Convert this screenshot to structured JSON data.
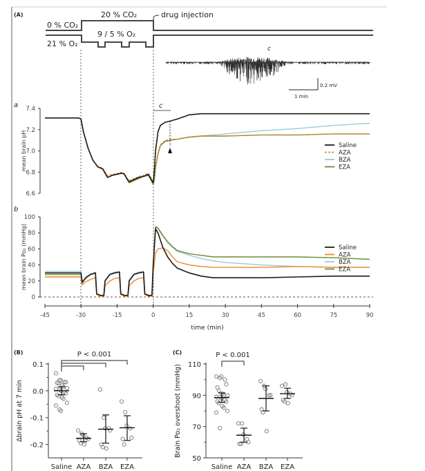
{
  "figure": {
    "panel_labels": [
      "(A)",
      "(B)",
      "(C)"
    ],
    "protocol": {
      "co2_baseline": "0 % CO₂",
      "co2_high": "20 % CO₂",
      "o2_baseline": "21 % O₂",
      "o2_low": "9 / 5 % O₂",
      "injection_label": "drug injection"
    },
    "trace_c": {
      "label": "c",
      "scale_voltage": "0.2 mV",
      "scale_time": "1 min"
    },
    "subpanel_a_label": "a",
    "subpanel_b_label": "b",
    "c_bar_label": "c"
  },
  "colors": {
    "Saline": "#1a1a1a",
    "AZA": "#e8892f",
    "BZA": "#9cc9d6",
    "EZA": "#6b8a34"
  },
  "chart_data": [
    {
      "id": "ph-time-course",
      "type": "line",
      "title": "",
      "xlabel": "time (min)",
      "ylabel": "mean brain pH",
      "xlim": [
        -45,
        90
      ],
      "ylim": [
        6.6,
        7.4
      ],
      "yticks": [
        "7.4",
        "7.2",
        "7.0",
        "6.8",
        "6.6"
      ],
      "legend": [
        "Saline",
        "AZA",
        "BZA",
        "EZA"
      ],
      "legend_position": "right",
      "annotations": [
        "arrowhead at 7 min"
      ],
      "series": [
        {
          "name": "Saline",
          "style": "solid",
          "x": [
            -45,
            -31,
            -30,
            -29,
            -27,
            -25,
            -23,
            -21,
            -19,
            -17,
            -15,
            -13,
            -12,
            -11,
            -10,
            -8,
            -6,
            -4,
            -2,
            -1,
            0,
            0.5,
            1,
            2,
            3,
            5,
            7,
            10,
            15,
            20,
            25,
            30,
            45,
            60,
            75,
            90
          ],
          "y": [
            7.31,
            7.31,
            7.3,
            7.18,
            7.02,
            6.91,
            6.85,
            6.83,
            6.75,
            6.77,
            6.78,
            6.79,
            6.78,
            6.74,
            6.71,
            6.73,
            6.75,
            6.76,
            6.78,
            6.74,
            6.7,
            6.82,
            7.0,
            7.18,
            7.24,
            7.27,
            7.28,
            7.3,
            7.34,
            7.35,
            7.35,
            7.35,
            7.35,
            7.35,
            7.35,
            7.35
          ]
        },
        {
          "name": "AZA",
          "style": "dashed",
          "x": [
            -45,
            -31,
            -30,
            -29,
            -27,
            -25,
            -23,
            -21,
            -19,
            -17,
            -15,
            -13,
            -12,
            -11,
            -10,
            -8,
            -6,
            -4,
            -2,
            -1,
            0,
            0.5,
            1,
            2,
            3,
            5,
            7,
            10,
            15,
            20,
            25,
            30,
            45,
            60,
            75,
            90
          ],
          "y": [
            7.31,
            7.31,
            7.3,
            7.18,
            7.02,
            6.91,
            6.85,
            6.84,
            6.77,
            6.78,
            6.79,
            6.8,
            6.79,
            6.75,
            6.72,
            6.74,
            6.76,
            6.77,
            6.79,
            6.75,
            6.69,
            6.74,
            6.85,
            6.98,
            7.06,
            7.1,
            7.11,
            7.11,
            7.13,
            7.14,
            7.14,
            7.14,
            7.15,
            7.15,
            7.16,
            7.16
          ]
        },
        {
          "name": "BZA",
          "style": "solid",
          "x": [
            -45,
            -31,
            -30,
            -29,
            -27,
            -25,
            -23,
            -21,
            -19,
            -17,
            -15,
            -13,
            -12,
            -11,
            -10,
            -8,
            -6,
            -4,
            -2,
            -1,
            0,
            0.5,
            1,
            2,
            3,
            5,
            7,
            10,
            15,
            20,
            25,
            30,
            45,
            60,
            75,
            90
          ],
          "y": [
            7.31,
            7.31,
            7.3,
            7.18,
            7.02,
            6.91,
            6.85,
            6.83,
            6.75,
            6.77,
            6.78,
            6.79,
            6.78,
            6.74,
            6.7,
            6.72,
            6.74,
            6.76,
            6.77,
            6.73,
            6.68,
            6.73,
            6.84,
            6.97,
            7.05,
            7.09,
            7.1,
            7.11,
            7.13,
            7.14,
            7.15,
            7.16,
            7.19,
            7.21,
            7.24,
            7.26
          ]
        },
        {
          "name": "EZA",
          "style": "solid",
          "x": [
            -45,
            -31,
            -30,
            -29,
            -27,
            -25,
            -23,
            -21,
            -19,
            -17,
            -15,
            -13,
            -12,
            -11,
            -10,
            -8,
            -6,
            -4,
            -2,
            -1,
            0,
            0.5,
            1,
            2,
            3,
            5,
            7,
            10,
            15,
            20,
            25,
            30,
            45,
            60,
            75,
            90
          ],
          "y": [
            7.31,
            7.31,
            7.3,
            7.18,
            7.02,
            6.91,
            6.85,
            6.83,
            6.75,
            6.77,
            6.78,
            6.79,
            6.78,
            6.74,
            6.7,
            6.72,
            6.74,
            6.76,
            6.77,
            6.73,
            6.68,
            6.73,
            6.84,
            6.97,
            7.05,
            7.09,
            7.1,
            7.11,
            7.13,
            7.14,
            7.14,
            7.14,
            7.15,
            7.15,
            7.16,
            7.16
          ]
        }
      ]
    },
    {
      "id": "po2-time-course",
      "type": "line",
      "title": "",
      "xlabel": "time (min)",
      "ylabel": "mean brain Po₂ (mmHg)",
      "xlim": [
        -45,
        90
      ],
      "ylim": [
        0,
        100
      ],
      "xticks": [
        "-45",
        "-30",
        "-15",
        "0",
        "15",
        "30",
        "45",
        "60",
        "75",
        "90"
      ],
      "yticks": [
        "100",
        "80",
        "60",
        "40",
        "20",
        "0"
      ],
      "legend": [
        "Saline",
        "AZA",
        "BZA",
        "EZA"
      ],
      "legend_position": "right",
      "series": [
        {
          "name": "Saline",
          "x": [
            -45,
            -30,
            -29.5,
            -28,
            -26,
            -24,
            -23.5,
            -22,
            -20.5,
            -20,
            -18,
            -16,
            -14,
            -13.5,
            -12,
            -10.5,
            -10,
            -8,
            -6,
            -4,
            -3.5,
            -2,
            -0.5,
            0,
            1,
            2,
            4,
            6,
            8,
            10,
            15,
            20,
            25,
            30,
            45,
            60,
            75,
            90
          ],
          "y": [
            30,
            30,
            18,
            24,
            28,
            30,
            4,
            2,
            2,
            20,
            28,
            30,
            31,
            4,
            2,
            2,
            20,
            28,
            30,
            31,
            4,
            2,
            2,
            40,
            85,
            80,
            62,
            50,
            42,
            36,
            30,
            26,
            24,
            24,
            24,
            25,
            26,
            26
          ]
        },
        {
          "name": "AZA",
          "x": [
            -45,
            -30,
            -29.5,
            -28,
            -26,
            -24,
            -23.5,
            -22,
            -20.5,
            -20,
            -18,
            -16,
            -14,
            -13.5,
            -12,
            -10.5,
            -10,
            -8,
            -6,
            -4,
            -3.5,
            -2,
            -0.5,
            0,
            1,
            2,
            4,
            6,
            8,
            10,
            15,
            20,
            25,
            30,
            45,
            60,
            75,
            90
          ],
          "y": [
            25,
            25,
            15,
            19,
            22,
            24,
            3,
            1,
            1,
            14,
            20,
            23,
            24,
            3,
            1,
            1,
            14,
            20,
            23,
            24,
            3,
            1,
            1,
            30,
            55,
            60,
            61,
            58,
            50,
            44,
            40,
            38,
            37,
            37,
            37,
            38,
            37,
            37
          ]
        },
        {
          "name": "BZA",
          "x": [
            -45,
            -30,
            -29.5,
            -28,
            -26,
            -24,
            -23.5,
            -22,
            -20.5,
            -20,
            -18,
            -16,
            -14,
            -13.5,
            -12,
            -10.5,
            -10,
            -8,
            -6,
            -4,
            -3.5,
            -2,
            -0.5,
            0,
            1,
            2,
            4,
            6,
            8,
            10,
            15,
            20,
            25,
            30,
            45,
            60,
            75,
            90
          ],
          "y": [
            32,
            32,
            19,
            25,
            29,
            31,
            4,
            2,
            2,
            21,
            29,
            31,
            32,
            4,
            2,
            2,
            21,
            29,
            31,
            32,
            4,
            2,
            2,
            42,
            87,
            85,
            76,
            68,
            62,
            57,
            52,
            48,
            45,
            43,
            40,
            38,
            37,
            37
          ]
        },
        {
          "name": "EZA",
          "x": [
            -45,
            -30,
            -29.5,
            -28,
            -26,
            -24,
            -23.5,
            -22,
            -20.5,
            -20,
            -18,
            -16,
            -14,
            -13.5,
            -12,
            -10.5,
            -10,
            -8,
            -6,
            -4,
            -3.5,
            -2,
            -0.5,
            0,
            1,
            2,
            4,
            6,
            8,
            10,
            15,
            20,
            25,
            30,
            45,
            60,
            75,
            90
          ],
          "y": [
            28,
            28,
            18,
            24,
            28,
            30,
            4,
            2,
            2,
            20,
            28,
            30,
            31,
            4,
            2,
            2,
            20,
            28,
            30,
            31,
            4,
            2,
            2,
            42,
            88,
            86,
            77,
            69,
            63,
            58,
            54,
            52,
            50,
            50,
            50,
            50,
            49,
            47
          ]
        }
      ]
    },
    {
      "id": "delta-ph-scatter",
      "type": "scatter",
      "title": "",
      "xlabel": "",
      "ylabel": "Δbrain pH at 7 min",
      "ylim": [
        -0.25,
        0.1
      ],
      "yticks": [
        "0.1",
        "0.0",
        "-0.1",
        "-0.2"
      ],
      "categories": [
        "Saline",
        "AZA",
        "BZA",
        "EZA"
      ],
      "significance": {
        "label": "P < 0.001",
        "comparisons": [
          [
            "Saline",
            "AZA"
          ],
          [
            "Saline",
            "BZA"
          ],
          [
            "Saline",
            "EZA"
          ]
        ]
      },
      "groups": [
        {
          "name": "Saline",
          "mean": 0.0,
          "sd_low": -0.015,
          "sd_high": 0.015,
          "points": [
            0.065,
            0.04,
            0.038,
            0.033,
            0.032,
            0.03,
            0.028,
            0.02,
            0.015,
            0.01,
            0.008,
            0.005,
            0.0,
            -0.005,
            -0.01,
            -0.015,
            -0.02,
            -0.025,
            -0.03,
            -0.045,
            -0.055,
            -0.07,
            -0.075
          ]
        },
        {
          "name": "AZA",
          "mean": -0.177,
          "sd_low": -0.19,
          "sd_high": -0.16,
          "points": [
            -0.148,
            -0.16,
            -0.165,
            -0.175,
            -0.18,
            -0.185,
            -0.195,
            -0.2
          ]
        },
        {
          "name": "BZA",
          "mean": -0.143,
          "sd_low": -0.195,
          "sd_high": -0.09,
          "points": [
            0.005,
            -0.1,
            -0.14,
            -0.14,
            -0.148,
            -0.2,
            -0.21,
            -0.215
          ]
        },
        {
          "name": "EZA",
          "mean": -0.138,
          "sd_low": -0.185,
          "sd_high": -0.093,
          "points": [
            -0.04,
            -0.08,
            -0.13,
            -0.14,
            -0.175,
            -0.18,
            -0.2
          ]
        }
      ]
    },
    {
      "id": "po2-overshoot-scatter",
      "type": "scatter",
      "title": "",
      "xlabel": "",
      "ylabel": "Brain Po₂ overshoot (mmHg)",
      "ylim": [
        50,
        110
      ],
      "yticks": [
        "110",
        "90",
        "70",
        "50"
      ],
      "categories": [
        "Saline",
        "AZA",
        "BZA",
        "EZA"
      ],
      "significance": {
        "label": "P < 0.001",
        "comparisons": [
          [
            "Saline",
            "AZA"
          ]
        ]
      },
      "groups": [
        {
          "name": "Saline",
          "mean": 88.5,
          "sd_low": 85.5,
          "sd_high": 91.5,
          "points": [
            102,
            101,
            102,
            100,
            97,
            95,
            93,
            91,
            90,
            90,
            89,
            89,
            88,
            87,
            86,
            86,
            85,
            83,
            82,
            80,
            79,
            69
          ]
        },
        {
          "name": "AZA",
          "mean": 64.5,
          "sd_low": 60,
          "sd_high": 69,
          "points": [
            72,
            72,
            65,
            62,
            60,
            59,
            59
          ]
        },
        {
          "name": "BZA",
          "mean": 88,
          "sd_low": 80,
          "sd_high": 96,
          "points": [
            99,
            96,
            94,
            90,
            90,
            81,
            79,
            67
          ]
        },
        {
          "name": "EZA",
          "mean": 91,
          "sd_low": 88,
          "sd_high": 94.5,
          "points": [
            96,
            97,
            92,
            91,
            90,
            87,
            86,
            85
          ]
        }
      ]
    }
  ]
}
